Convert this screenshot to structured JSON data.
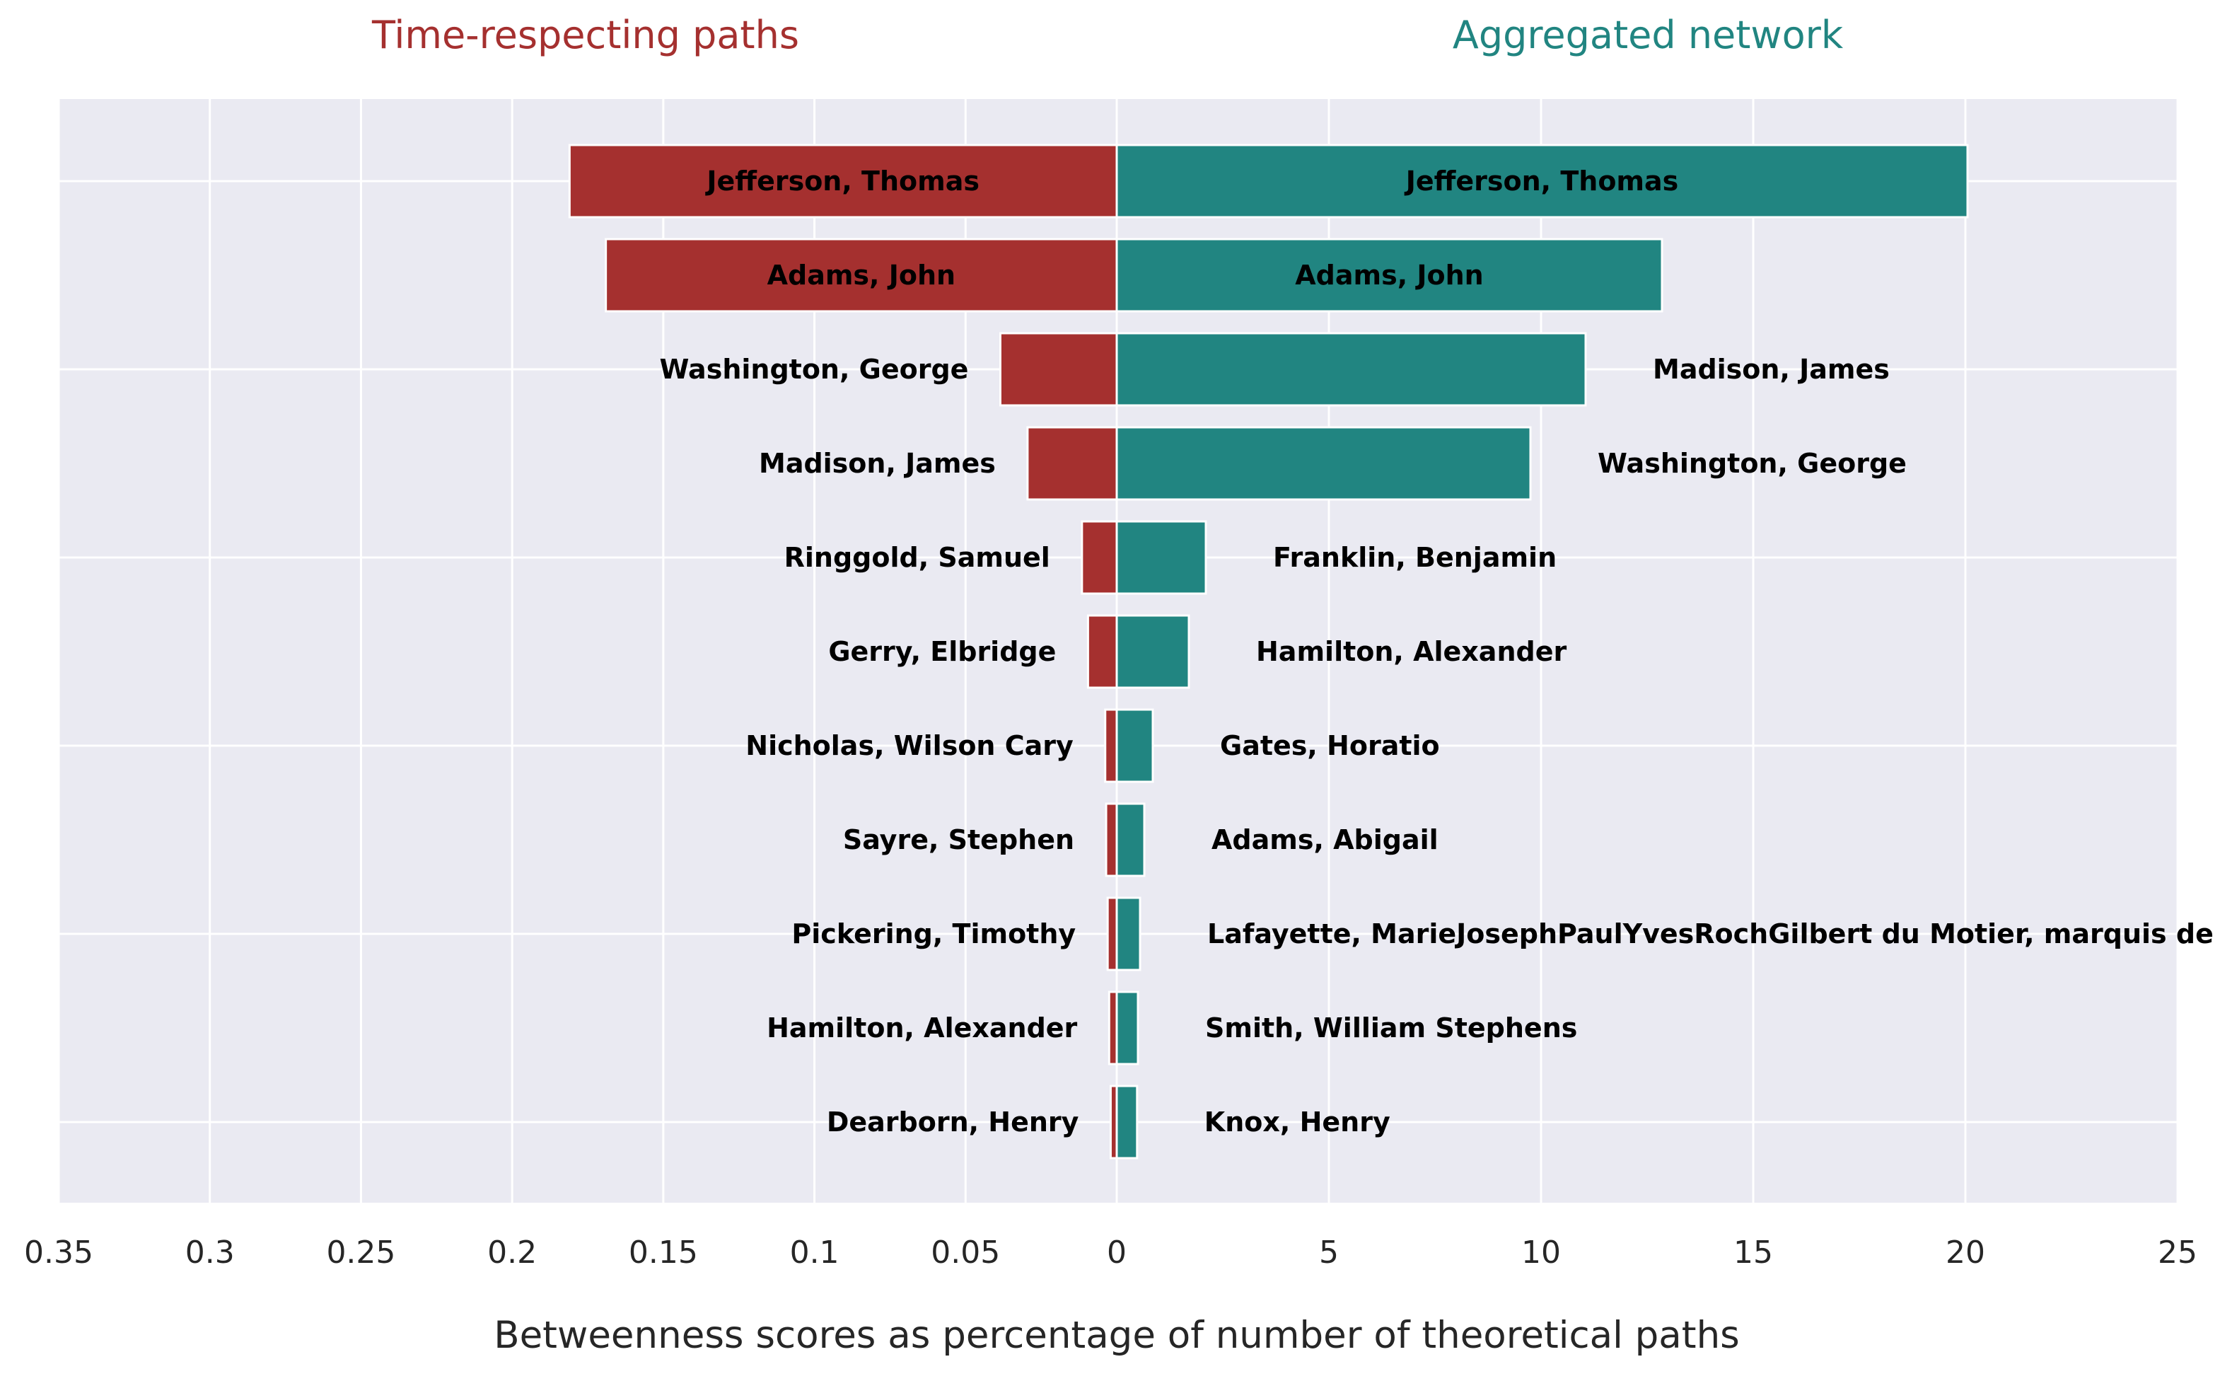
{
  "chart_data": {
    "type": "bar",
    "orientation": "horizontal",
    "xlabel": "Betweenness scores as percentage of number of theoretical paths",
    "grid": true,
    "colors": {
      "left": "#a5302f",
      "right": "#218581",
      "background": "#eaeaf2",
      "grid": "#ffffff"
    },
    "left": {
      "title": "Time-respecting paths",
      "xlim": [
        0,
        0.35
      ],
      "direction": "reversed",
      "ticks": [
        0.35,
        0.3,
        0.25,
        0.2,
        0.15,
        0.1,
        0.05,
        0
      ],
      "tick_labels": [
        "0.35",
        "0.3",
        "0.25",
        "0.2",
        "0.15",
        "0.1",
        "0.05",
        "0"
      ],
      "categories": [
        "Jefferson, Thomas",
        "Adams, John",
        "Washington, George",
        "Madison, James",
        "Ringgold, Samuel",
        "Gerry, Elbridge",
        "Nicholas, Wilson Cary",
        "Sayre, Stephen",
        "Pickering, Timothy",
        "Hamilton, Alexander",
        "Dearborn, Henry"
      ],
      "values": [
        0.181,
        0.169,
        0.0385,
        0.0295,
        0.0115,
        0.0095,
        0.0038,
        0.0035,
        0.003,
        0.0025,
        0.002
      ]
    },
    "right": {
      "title": "Aggregated network",
      "xlim": [
        0,
        25
      ],
      "ticks": [
        0,
        5,
        10,
        15,
        20,
        25
      ],
      "tick_labels": [
        "0",
        "5",
        "10",
        "15",
        "20",
        "25"
      ],
      "categories": [
        "Jefferson, Thomas",
        "Adams, John",
        "Madison, James",
        "Washington, George",
        "Franklin, Benjamin",
        "Hamilton, Alexander",
        "Gates, Horatio",
        "Adams, Abigail",
        "Lafayette, MarieJosephPaulYvesRochGilbert du Motier, marquis de",
        "Smith, William Stephens",
        "Knox, Henry"
      ],
      "values": [
        20.05,
        12.85,
        11.05,
        9.75,
        2.1,
        1.7,
        0.85,
        0.65,
        0.55,
        0.5,
        0.48
      ]
    }
  }
}
